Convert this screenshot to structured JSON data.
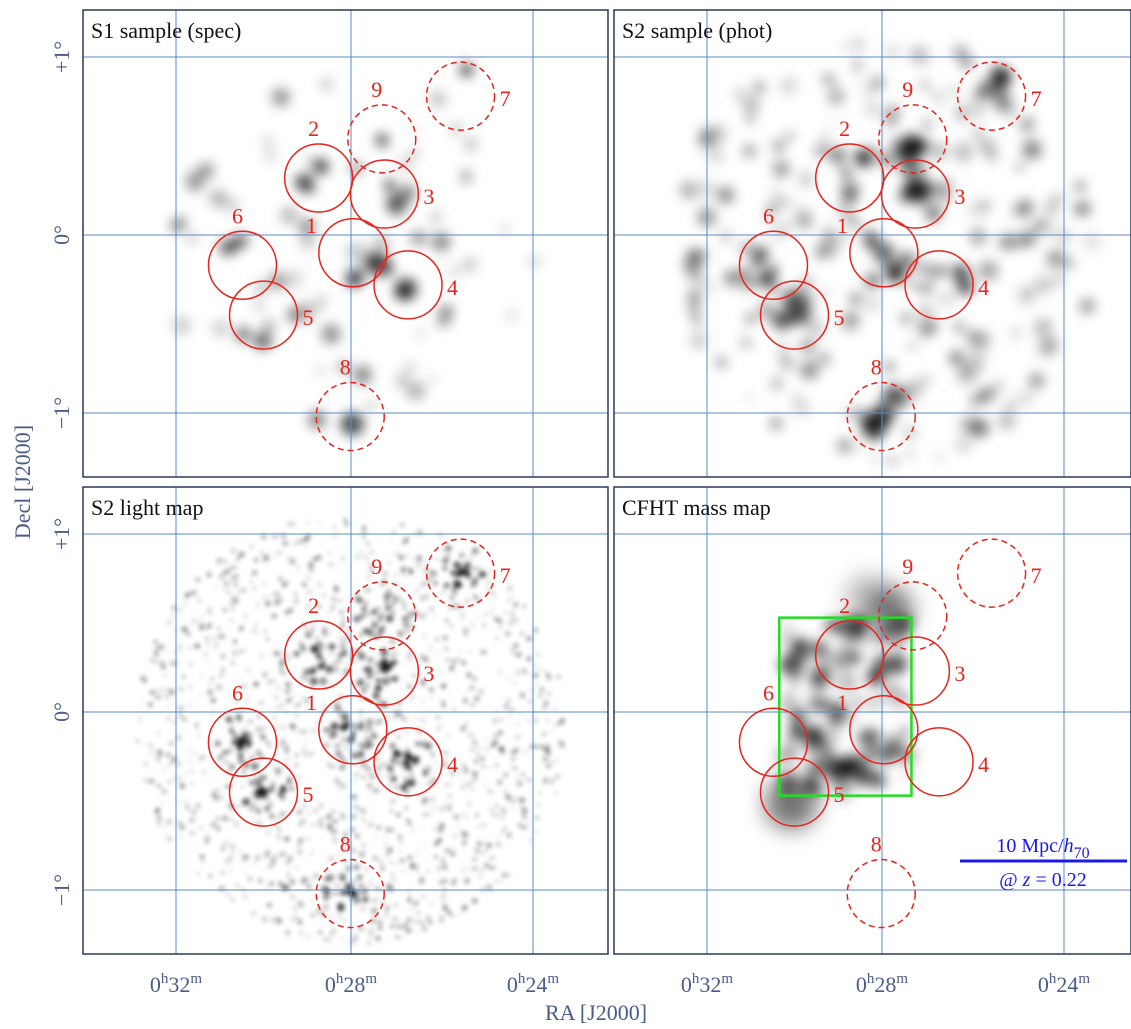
{
  "figure": {
    "y_axis_label": "Decl [J2000]",
    "x_axis_label": "RA [J2000]",
    "ra_ticks": [
      {
        "h": "0",
        "m": "32"
      },
      {
        "h": "0",
        "m": "28"
      },
      {
        "h": "0",
        "m": "24"
      }
    ],
    "dec_ticks": [
      "+1°",
      "0°",
      "−1°"
    ],
    "grid_color": "#5b8ac5",
    "circle_color": "#e8231b"
  },
  "panels": [
    {
      "title": "S1 sample (spec)",
      "type": "density",
      "seed": 7,
      "blobs": 60,
      "extent": "compact"
    },
    {
      "title": "S2 sample (phot)",
      "type": "density",
      "seed": 19,
      "blobs": 220,
      "extent": "field"
    },
    {
      "title": "S2 light map",
      "type": "points",
      "seed": 31,
      "blobs": 1400,
      "extent": "field"
    },
    {
      "title": "CFHT mass map",
      "type": "mass",
      "seed": 43,
      "blobs": 90,
      "extent": "square",
      "box_color": "#22dd22"
    }
  ],
  "groups": [
    {
      "label": "1",
      "ra_h": 0.466,
      "dec": -0.1,
      "dashed": false
    },
    {
      "label": "2",
      "ra_h": 0.479,
      "dec": 0.32,
      "dashed": false
    },
    {
      "label": "3",
      "ra_h": 0.454,
      "dec": 0.23,
      "dashed": false
    },
    {
      "label": "4",
      "ra_h": 0.445,
      "dec": -0.28,
      "dashed": false
    },
    {
      "label": "5",
      "ra_h": 0.5,
      "dec": -0.45,
      "dashed": false
    },
    {
      "label": "6",
      "ra_h": 0.508,
      "dec": -0.17,
      "dashed": false
    },
    {
      "label": "7",
      "ra_h": 0.425,
      "dec": 0.78,
      "dashed": true
    },
    {
      "label": "8",
      "ra_h": 0.467,
      "dec": -1.02,
      "dashed": true
    },
    {
      "label": "9",
      "ra_h": 0.455,
      "dec": 0.54,
      "dashed": true
    }
  ],
  "scale_bar": {
    "top_text": "10 Mpc/",
    "top_italic": "h",
    "top_sub": "70",
    "bottom_prefix": "@ ",
    "bottom_var": "z",
    "bottom_value": " = 0.22",
    "color": "#1a1ae8"
  }
}
